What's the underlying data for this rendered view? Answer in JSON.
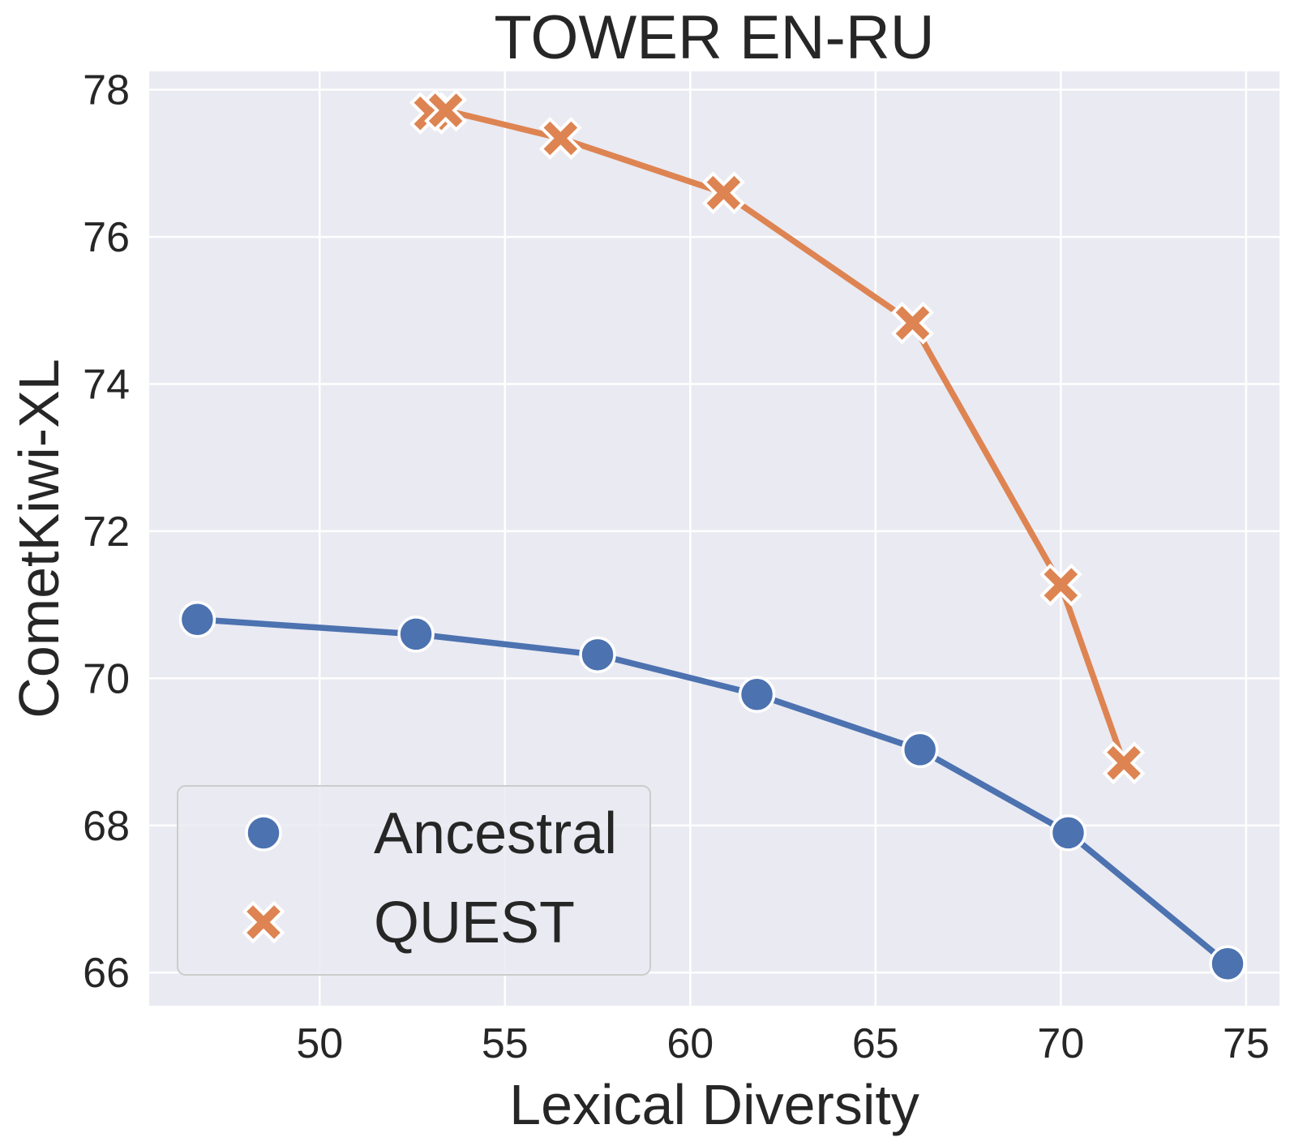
{
  "chart_data": {
    "type": "line",
    "title": "TOWER EN-RU",
    "xlabel": "Lexical Diversity",
    "ylabel": "CometKiwi-XL",
    "xlim": [
      45.4,
      75.9
    ],
    "ylim": [
      65.55,
      78.25
    ],
    "xticks": [
      50,
      55,
      60,
      65,
      70,
      75
    ],
    "yticks": [
      66,
      68,
      70,
      72,
      74,
      76,
      78
    ],
    "grid": true,
    "legend_position": "lower-left",
    "background": "#EAEAF2",
    "series": [
      {
        "name": "Ancestral",
        "marker": "circle",
        "color": "#4C72B0",
        "points": [
          {
            "x": 46.7,
            "y": 70.8
          },
          {
            "x": 52.6,
            "y": 70.6
          },
          {
            "x": 57.5,
            "y": 70.32
          },
          {
            "x": 61.8,
            "y": 69.78
          },
          {
            "x": 66.2,
            "y": 69.03
          },
          {
            "x": 70.2,
            "y": 67.9
          },
          {
            "x": 74.5,
            "y": 66.12
          }
        ]
      },
      {
        "name": "QUEST",
        "marker": "x",
        "color": "#DD8452",
        "points": [
          {
            "x": 53.0,
            "y": 77.68
          },
          {
            "x": 53.4,
            "y": 77.72
          },
          {
            "x": 56.5,
            "y": 77.34
          },
          {
            "x": 60.9,
            "y": 76.6
          },
          {
            "x": 66.0,
            "y": 74.83
          },
          {
            "x": 70.0,
            "y": 71.27
          },
          {
            "x": 71.7,
            "y": 68.85
          }
        ]
      }
    ]
  }
}
